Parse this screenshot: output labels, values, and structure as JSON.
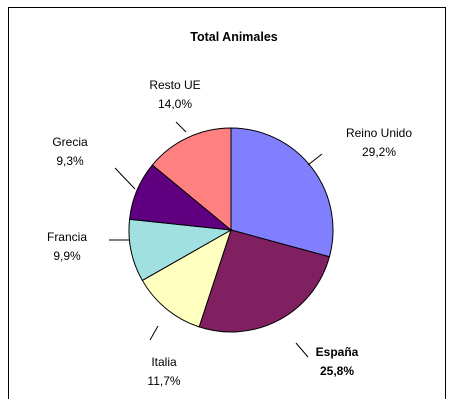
{
  "chart_data": {
    "type": "pie",
    "title": "Total Animales",
    "categories": [
      "Reino Unido",
      "España",
      "Italia",
      "Francia",
      "Grecia",
      "Resto UE"
    ],
    "values": [
      29.2,
      25.8,
      11.7,
      9.9,
      9.3,
      14.0
    ],
    "value_labels": [
      "29,2%",
      "25,8%",
      "11,7%",
      "9,9%",
      "9,3%",
      "14,0%"
    ],
    "colors": [
      "#8080FF",
      "#802060",
      "#FFFFC0",
      "#A0E0E0",
      "#600080",
      "#FF8080"
    ],
    "highlighted": [
      "España"
    ],
    "legend": "none",
    "start_angle": "12 o'clock",
    "direction": "clockwise"
  }
}
